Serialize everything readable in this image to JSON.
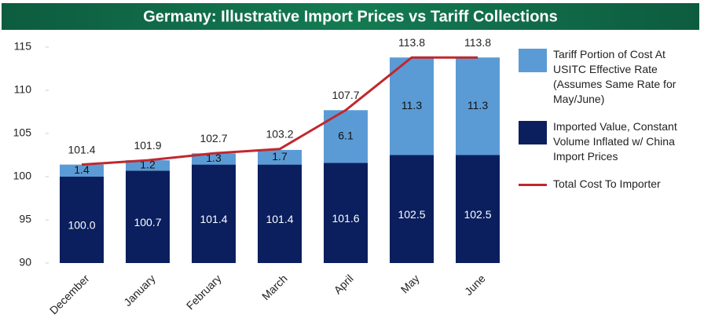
{
  "chart_data": {
    "type": "bar",
    "title": "Germany: Illustrative Import Prices vs Tariff Collections",
    "categories": [
      "December",
      "January",
      "February",
      "March",
      "April",
      "May",
      "June"
    ],
    "series": [
      {
        "name": "Imported Value, Constant Volume Inflated w/ China Import Prices",
        "color": "#0b1f5e",
        "type": "bar",
        "values": [
          100.0,
          100.7,
          101.4,
          101.4,
          101.6,
          102.5,
          102.5
        ],
        "value_labels": [
          "100.0",
          "100.7",
          "101.4",
          "101.4",
          "101.6",
          "102.5",
          "102.5"
        ]
      },
      {
        "name": "Tariff Portion of Cost At USITC Effective Rate (Assumes Same Rate for May/June)",
        "color": "#5b9bd5",
        "type": "bar",
        "values": [
          1.4,
          1.2,
          1.3,
          1.7,
          6.1,
          11.3,
          11.3
        ]
      },
      {
        "name": "Total Cost To Importer",
        "color": "#c0282d",
        "type": "line",
        "values": [
          101.4,
          101.9,
          102.7,
          103.2,
          107.7,
          113.8,
          113.8
        ]
      }
    ],
    "ylim": [
      90,
      115
    ],
    "yticks": [
      90,
      95,
      100,
      105,
      110,
      115
    ],
    "legend": "right"
  }
}
